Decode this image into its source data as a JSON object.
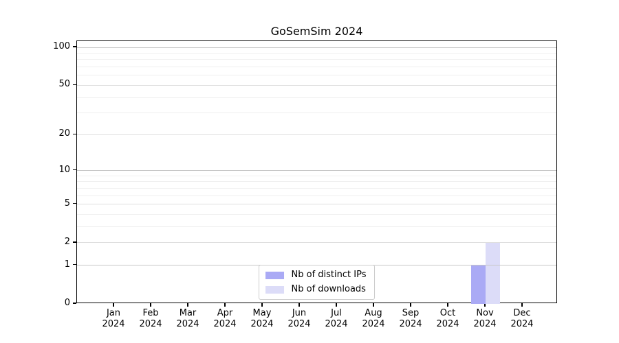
{
  "title": "GoSemSim 2024",
  "chart_data": {
    "type": "bar",
    "title": "GoSemSim 2024",
    "categories": [
      "Jan 2024",
      "Feb 2024",
      "Mar 2024",
      "Apr 2024",
      "May 2024",
      "Jun 2024",
      "Jul 2024",
      "Aug 2024",
      "Sep 2024",
      "Oct 2024",
      "Nov 2024",
      "Dec 2024"
    ],
    "series": [
      {
        "name": "Nb of distinct IPs",
        "color": "#aaaaf5",
        "values": [
          0,
          0,
          0,
          0,
          0,
          0,
          0,
          0,
          0,
          0,
          1,
          0
        ]
      },
      {
        "name": "Nb of downloads",
        "color": "#dcdcf8",
        "values": [
          0,
          0,
          0,
          0,
          0,
          0,
          0,
          0,
          0,
          0,
          2,
          0
        ]
      }
    ],
    "xlabel": "",
    "ylabel": "",
    "yscale": "log1p",
    "ylim": [
      0,
      112
    ],
    "yticks": [
      0,
      1,
      2,
      5,
      10,
      20,
      50,
      100
    ],
    "minor_gridlines": [
      3,
      4,
      6,
      7,
      8,
      9,
      30,
      40,
      60,
      70,
      80,
      90
    ],
    "grid": true,
    "legend_position": "lower center"
  },
  "colors": {
    "bar_distinct_ips": "#aaaaf5",
    "bar_downloads": "#dcdcf8",
    "grid_decade": "#c6c6c6",
    "grid_labeled": "#dfdfdf",
    "grid_minor": "#efefef",
    "axis": "#000000",
    "legend_border": "#cccccc",
    "text": "#000000",
    "background": "#ffffff"
  }
}
